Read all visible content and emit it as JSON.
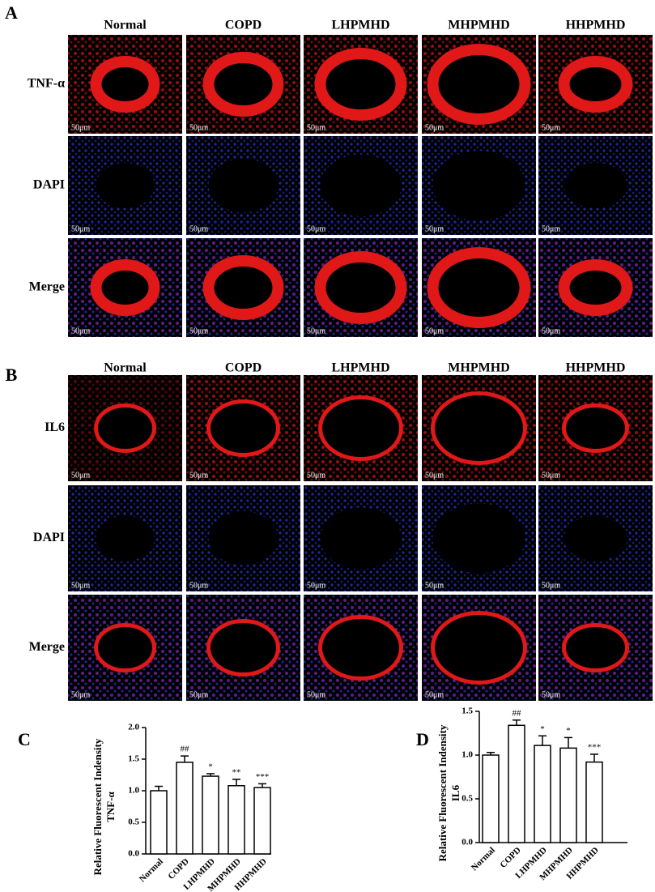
{
  "panels": [
    {
      "label": "A",
      "columns": [
        "Normal",
        "COPD",
        "LHPMHD",
        "MHPMHD",
        "HHPMHD"
      ],
      "rows": [
        "TNF-α",
        "DAPI",
        "Merge"
      ],
      "scale_bar": "50μm"
    },
    {
      "label": "B",
      "columns": [
        "Normal",
        "COPD",
        "LHPMHD",
        "MHPMHD",
        "HHPMHD"
      ],
      "rows": [
        "IL6",
        "DAPI",
        "Merge"
      ],
      "scale_bar": "50μm"
    }
  ],
  "chart_data": [
    {
      "type": "bar",
      "label": "C",
      "ylabel": "Relative Fluorescent Indensity",
      "ylabel_sub": "TNF-α",
      "categories": [
        "Normal",
        "COPD",
        "LHPMHD",
        "MHPMHD",
        "HHPMHD"
      ],
      "values": [
        1.0,
        1.45,
        1.23,
        1.08,
        1.05
      ],
      "errors": [
        0.07,
        0.1,
        0.04,
        0.1,
        0.06
      ],
      "annotations": [
        null,
        "##",
        "*",
        "**",
        "***"
      ],
      "color": "#ffffff",
      "ylim": [
        0,
        2
      ],
      "yticks": [
        {
          "value": 0,
          "label": "0.0"
        },
        0.5,
        {
          "value": 1,
          "label": "1.0"
        },
        1.5,
        {
          "value": 2,
          "label": "2.0"
        }
      ]
    },
    {
      "type": "bar",
      "label": "D",
      "ylabel": "Relative Fluorescent Indensity",
      "ylabel_sub": "IL6",
      "categories": [
        "Normal",
        "COPD",
        "LHPMHD",
        "MHPMHD",
        "HHPMHD"
      ],
      "values": [
        1.0,
        1.34,
        1.11,
        1.08,
        0.92
      ],
      "errors": [
        0.03,
        0.06,
        0.11,
        0.12,
        0.09
      ],
      "annotations": [
        null,
        "##",
        "*",
        "*",
        "***"
      ],
      "color": "#ffffff",
      "ylim": [
        0,
        1.5
      ],
      "yticks": [
        {
          "value": 0,
          "label": "0.0"
        },
        0.5,
        {
          "value": 1,
          "label": "1.0"
        },
        1.5
      ]
    }
  ]
}
